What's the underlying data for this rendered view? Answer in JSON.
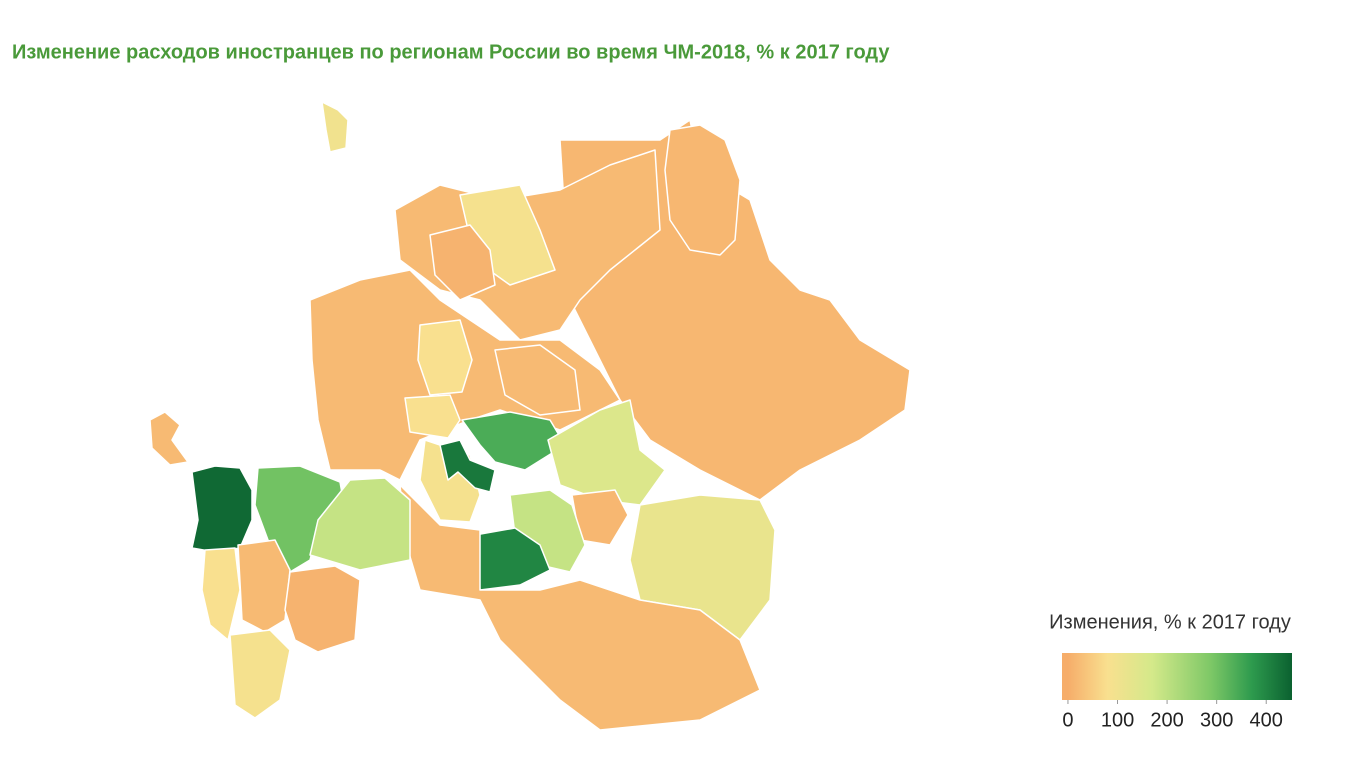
{
  "chart_data": {
    "type": "choropleth",
    "title": "Изменение расходов иностранцев по регионам России во время ЧМ-2018, % к 2017 году",
    "values": [
      20,
      100,
      15,
      15,
      20,
      90,
      10,
      20,
      80,
      80,
      20,
      90,
      340,
      420,
      150,
      15,
      190,
      400,
      120,
      20,
      300,
      440,
      190,
      20,
      10,
      80,
      90
    ],
    "legend": {
      "title": "Изменения, %  к 2017 году",
      "clim": [
        -12,
        452
      ],
      "ticks": [
        0,
        100,
        200,
        300,
        400
      ]
    },
    "colorscale": [
      {
        "value": 0,
        "color": "#f6ad6a"
      },
      {
        "value": 80,
        "color": "#f9e08f"
      },
      {
        "value": 170,
        "color": "#d4e98a"
      },
      {
        "value": 290,
        "color": "#7cc766"
      },
      {
        "value": 370,
        "color": "#2e9b4e"
      },
      {
        "value": 452,
        "color": "#0b6130"
      }
    ]
  }
}
